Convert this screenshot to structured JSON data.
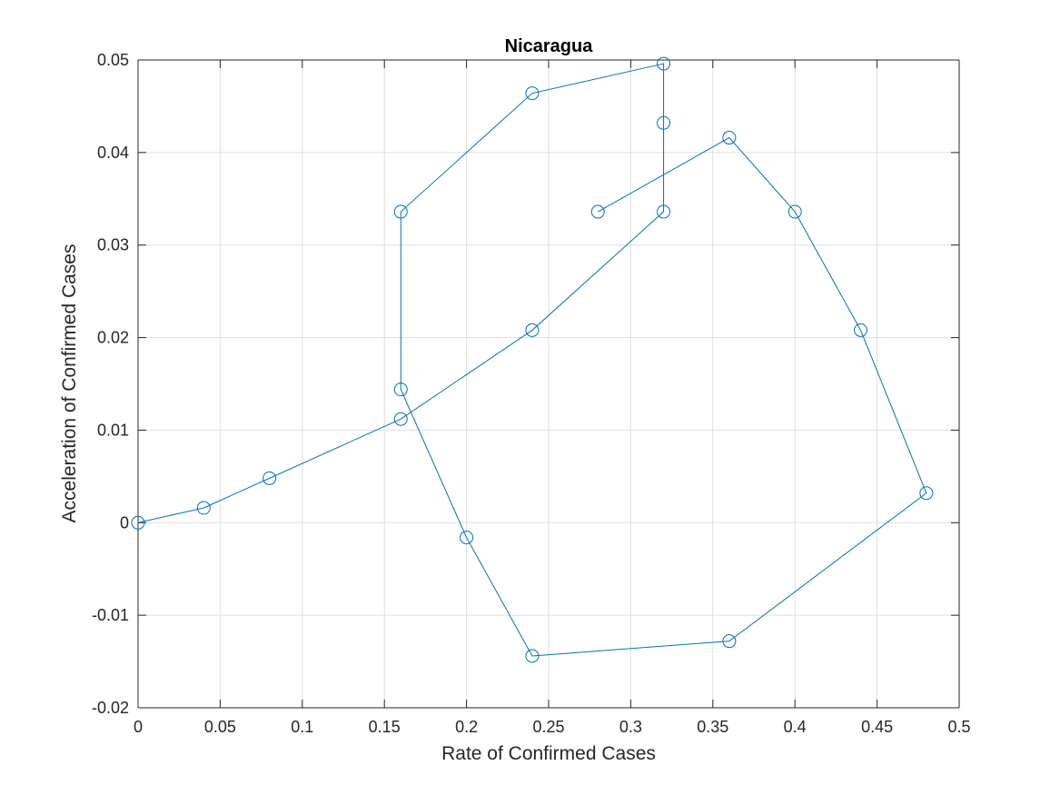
{
  "chart_data": {
    "type": "line",
    "title": "Nicaragua",
    "xlabel": "Rate of Confirmed Cases",
    "ylabel": "Acceleration of Confirmed Cases",
    "xlim": [
      0,
      0.5
    ],
    "ylim": [
      -0.02,
      0.05
    ],
    "grid": true,
    "legend": "none",
    "series_color": "#0072BD",
    "marker": "circle",
    "xticks": [
      0,
      0.05,
      0.1,
      0.15,
      0.2,
      0.25,
      0.3,
      0.35,
      0.4,
      0.45,
      0.5
    ],
    "xtick_labels": [
      "0",
      "0.05",
      "0.1",
      "0.15",
      "0.2",
      "0.25",
      "0.3",
      "0.35",
      "0.4",
      "0.45",
      "0.5"
    ],
    "yticks": [
      -0.02,
      -0.01,
      0,
      0.01,
      0.02,
      0.03,
      0.04,
      0.05
    ],
    "ytick_labels": [
      "-0.02",
      "-0.01",
      "0",
      "0.01",
      "0.02",
      "0.03",
      "0.04",
      "0.05"
    ],
    "series": [
      {
        "x": [
          0,
          0.04,
          0.08,
          0.16,
          0.24,
          0.32,
          0.32,
          0.32,
          0.24,
          0.16,
          0.16,
          0.2,
          0.24,
          0.36,
          0.48,
          0.44,
          0.4,
          0.36,
          0.28
        ],
        "y": [
          0,
          0.0016,
          0.0048,
          0.0112,
          0.0208,
          0.0336,
          0.0432,
          0.0496,
          0.0464,
          0.0336,
          0.0144,
          -0.0016,
          -0.0144,
          -0.0128,
          0.0032,
          0.0208,
          0.0336,
          0.0416,
          0.0336
        ]
      }
    ]
  }
}
